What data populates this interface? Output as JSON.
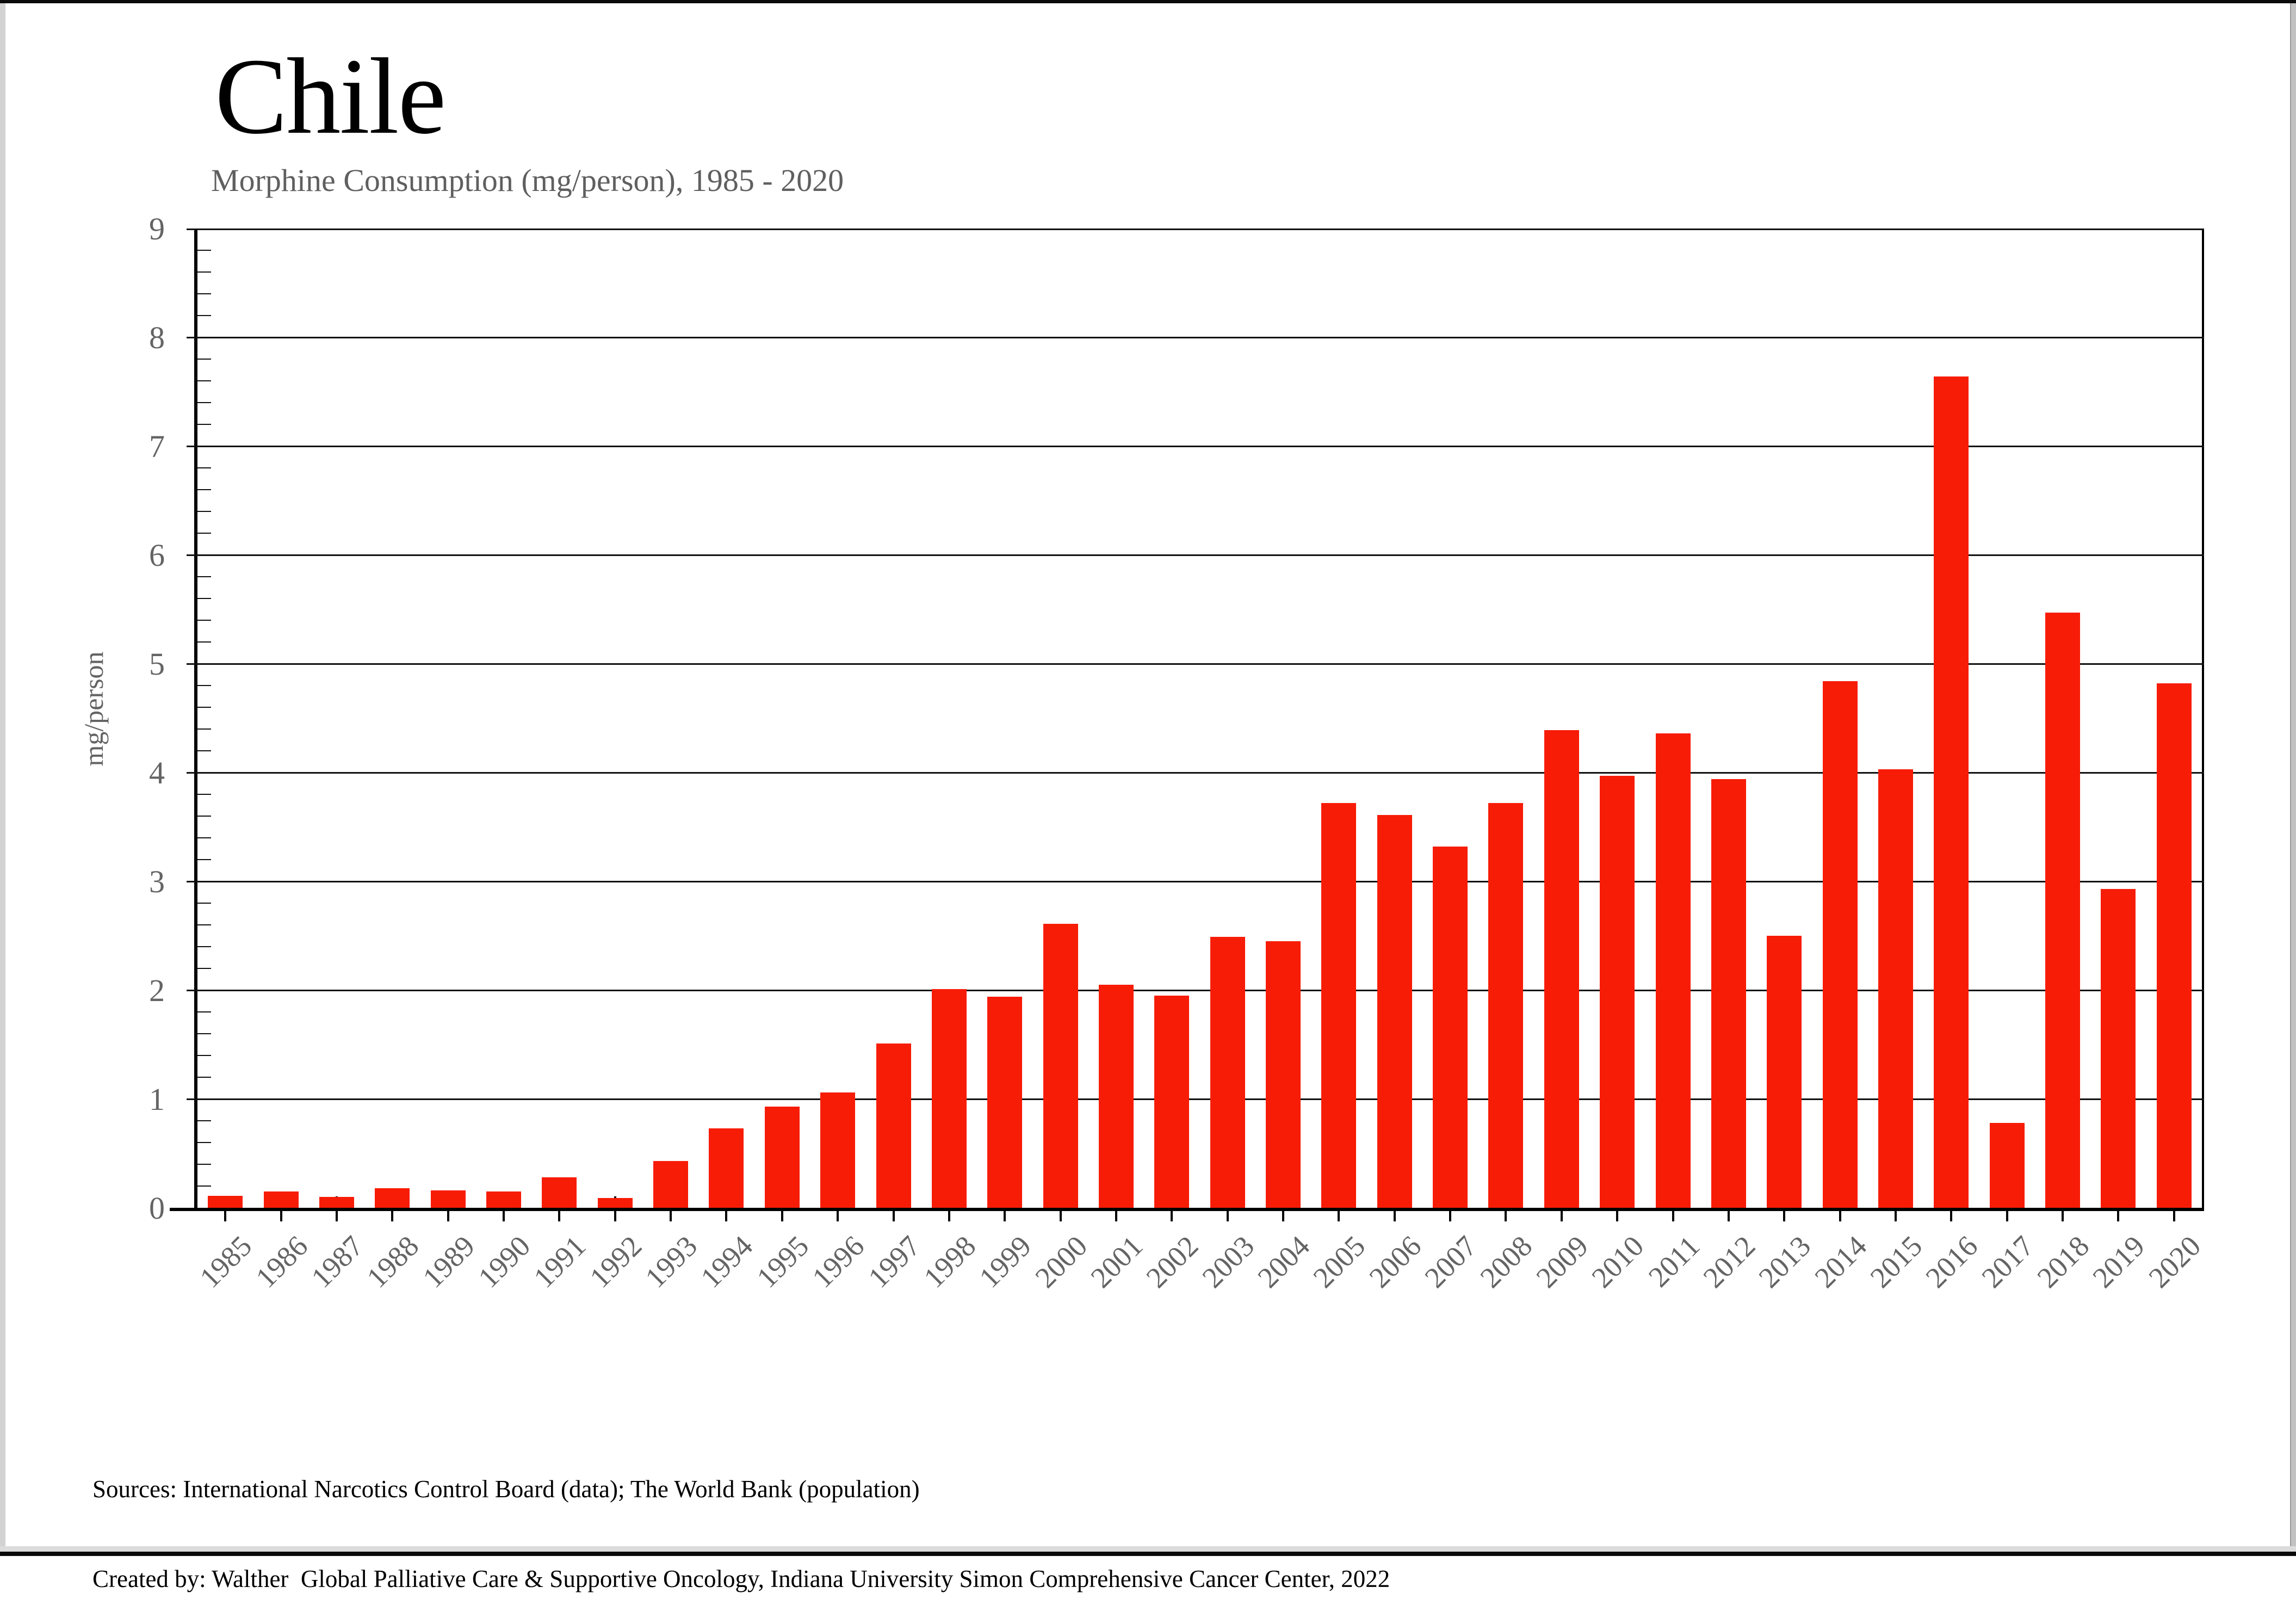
{
  "header": {
    "title": "Chile",
    "subtitle": "Morphine Consumption (mg/person), 1985 - 2020"
  },
  "footer": {
    "sources": "Sources: International Narcotics Control Board (data); The World Bank (population)",
    "credit": "Created by: Walther  Global Palliative Care & Supportive Oncology, Indiana University Simon Comprehensive Cancer Center, 2022"
  },
  "chart_data": {
    "type": "bar",
    "title": "Chile",
    "subtitle": "Morphine Consumption (mg/person), 1985 - 2020",
    "xlabel": "",
    "ylabel": "mg/person",
    "ylim": [
      0,
      9
    ],
    "y_major_step": 1,
    "y_minor_step": 0.2,
    "grid": "horizontal-major",
    "legend": "none",
    "bar_color": "#f71c06",
    "axis_color": "#000000",
    "label_color": "#646464",
    "categories": [
      "1985",
      "1986",
      "1987",
      "1988",
      "1989",
      "1990",
      "1991",
      "1992",
      "1993",
      "1994",
      "1995",
      "1996",
      "1997",
      "1998",
      "1999",
      "2000",
      "2001",
      "2002",
      "2003",
      "2004",
      "2005",
      "2006",
      "2007",
      "2008",
      "2009",
      "2010",
      "2011",
      "2012",
      "2013",
      "2014",
      "2015",
      "2016",
      "2017",
      "2018",
      "2019",
      "2020"
    ],
    "values": [
      0.11,
      0.15,
      0.1,
      0.18,
      0.16,
      0.15,
      0.28,
      0.09,
      0.43,
      0.73,
      0.93,
      1.06,
      1.51,
      2.01,
      1.94,
      2.61,
      2.05,
      1.95,
      2.49,
      2.45,
      3.72,
      3.61,
      3.32,
      3.72,
      4.39,
      3.97,
      4.36,
      3.94,
      2.5,
      4.84,
      4.03,
      7.64,
      0.78,
      5.47,
      2.93,
      4.82
    ]
  }
}
